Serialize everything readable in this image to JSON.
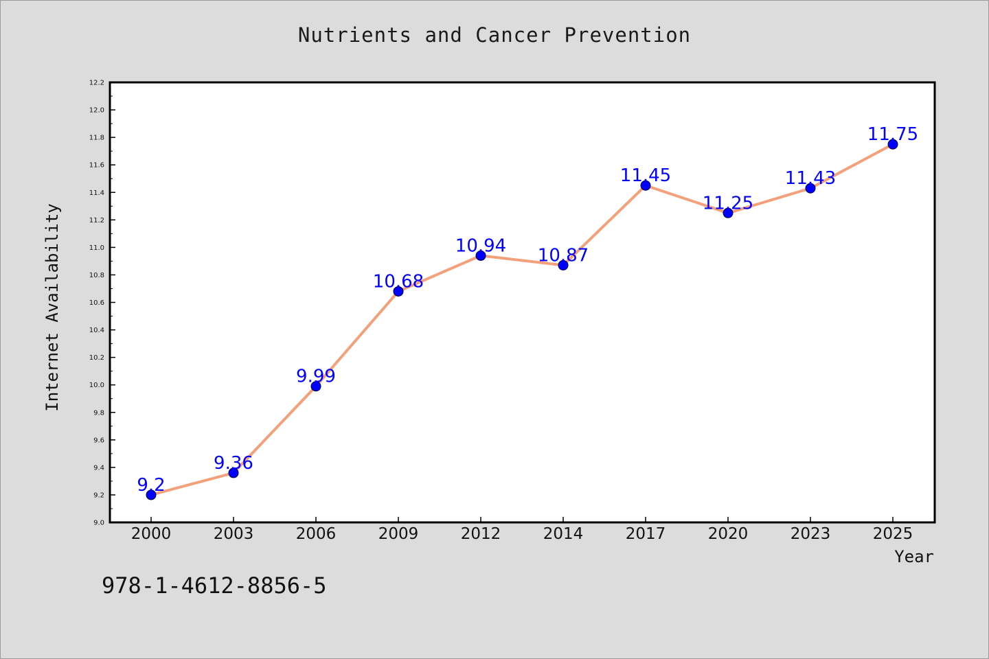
{
  "chart_data": {
    "type": "line",
    "title": "Nutrients and Cancer Prevention",
    "xlabel": "Year",
    "ylabel": "Internet Availability",
    "categories": [
      "2000",
      "2003",
      "2006",
      "2009",
      "2012",
      "2014",
      "2017",
      "2020",
      "2023",
      "2025"
    ],
    "series": [
      {
        "values": [
          9.2,
          9.36,
          9.99,
          10.68,
          10.94,
          10.87,
          11.45,
          11.25,
          11.43,
          11.75
        ],
        "data_labels": [
          "9.2",
          "9.36",
          "9.99",
          "10.68",
          "10.94",
          "10.87",
          "11.45",
          "11.25",
          "11.43",
          "11.75"
        ]
      }
    ],
    "ylim": [
      9.0,
      12.2
    ],
    "yticks": [
      "9.0",
      "9.2",
      "9.4",
      "9.6",
      "9.8",
      "10.0",
      "10.2",
      "10.4",
      "10.6",
      "10.8",
      "11.0",
      "11.2",
      "11.4",
      "11.6",
      "11.8",
      "12.0",
      "12.2"
    ],
    "grid": false,
    "legend": "none",
    "colors": {
      "line": "#f4a07a",
      "marker": "#0000ff",
      "data_label": "#0000ff",
      "background": "#dcdcdc",
      "plot_background": "#ffffff"
    }
  },
  "footer_text": "978-1-4612-8856-5"
}
